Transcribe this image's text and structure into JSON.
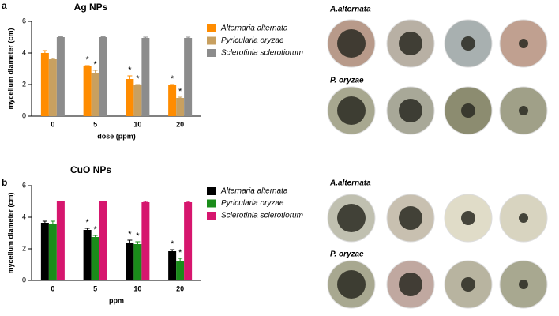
{
  "chart_data": [
    {
      "type": "bar",
      "panel": "a",
      "title": "Ag NPs",
      "y_label": "mycelium diameter (cm)",
      "x_label": "dose (ppm)",
      "categories": [
        "0",
        "5",
        "10",
        "20"
      ],
      "series": [
        {
          "name": "Alternaria alternata",
          "color": "#ff8c00",
          "values": [
            4.0,
            3.15,
            2.35,
            1.95
          ],
          "errors": [
            0.15,
            0.05,
            0.2,
            0.05
          ],
          "markers": [
            null,
            "*",
            "*",
            "*"
          ]
        },
        {
          "name": "Pyricularia oryzae",
          "color": "#c8a060",
          "values": [
            3.6,
            2.75,
            1.95,
            1.15
          ],
          "errors": [
            0.05,
            0.15,
            0.05,
            0.05
          ],
          "markers": [
            null,
            "*",
            "*",
            "*"
          ]
        },
        {
          "name": "Sclerotinia sclerotiorum",
          "color": "#8c8c8c",
          "values": [
            5.0,
            5.0,
            4.95,
            4.95
          ],
          "errors": [
            0.02,
            0.02,
            0.05,
            0.05
          ],
          "markers": [
            null,
            null,
            null,
            null
          ]
        }
      ],
      "ylim": [
        0,
        6
      ],
      "yticks": [
        0,
        2,
        4,
        6
      ],
      "photo_labels": [
        "A.alternata",
        "P. oryzae"
      ]
    },
    {
      "type": "bar",
      "panel": "b",
      "title": "CuO NPs",
      "y_label": "mycelium diameter (cm)",
      "x_label": "ppm",
      "categories": [
        "0",
        "5",
        "10",
        "20"
      ],
      "series": [
        {
          "name": "Alternaria alternata",
          "color": "#000000",
          "values": [
            3.65,
            3.2,
            2.35,
            1.85
          ],
          "errors": [
            0.1,
            0.1,
            0.2,
            0.1
          ],
          "markers": [
            null,
            "*",
            "*",
            "*"
          ]
        },
        {
          "name": "Pyricularia oryzae",
          "color": "#1a8c1a",
          "values": [
            3.6,
            2.75,
            2.3,
            1.2
          ],
          "errors": [
            0.15,
            0.1,
            0.15,
            0.2
          ],
          "markers": [
            null,
            "*",
            "*",
            "*"
          ]
        },
        {
          "name": "Sclerotinia sclerotiorum",
          "color": "#d6166e",
          "values": [
            5.0,
            5.0,
            4.95,
            4.95
          ],
          "errors": [
            0.02,
            0.02,
            0.05,
            0.05
          ],
          "markers": [
            null,
            null,
            null,
            null
          ]
        }
      ],
      "ylim": [
        0,
        6
      ],
      "yticks": [
        0,
        2,
        4,
        6
      ],
      "photo_labels": [
        "A.alternata",
        "P. oryzae"
      ]
    }
  ]
}
